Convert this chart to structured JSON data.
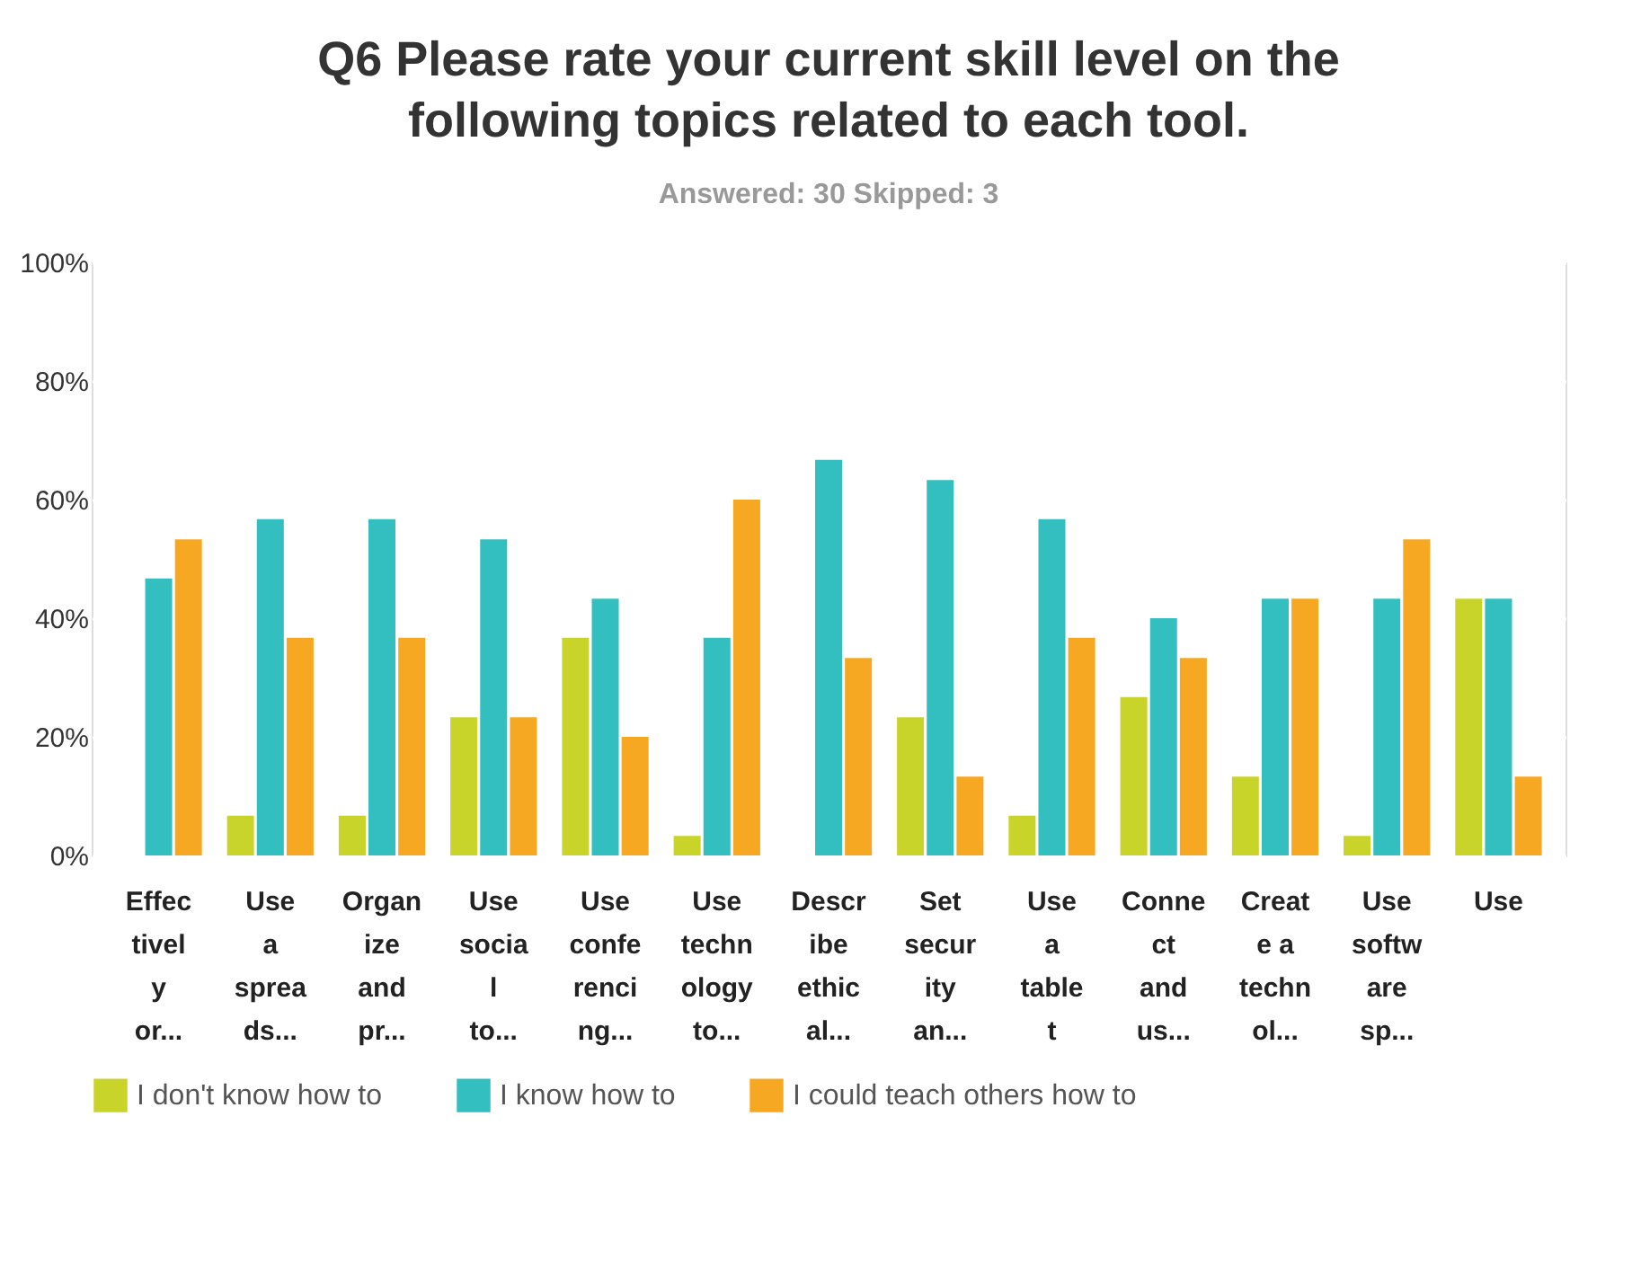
{
  "chart_data": {
    "type": "bar",
    "title": "Q6 Please rate your current skill level on the following topics related to each tool.",
    "subtitle": "Answered: 30    Skipped: 3",
    "categories": [
      "Effec\ntivel\ny\nor...",
      "Use\na\nsprea\nds...",
      "Organ\nize\nand\npr...",
      "Use\nsocia\nl\nto...",
      "Use\nconfe\nrenci\nng...",
      "Use\ntechn\nology\nto...",
      "Descr\nibe\nethic\nal...",
      "Set\nsecur\nity\nan...",
      "Use\na\ntable\nt",
      "Conne\nct\nand\nus...",
      "Creat\ne a\ntechn\nol...",
      "Use\nsoftw\nare\nsp...",
      "Use"
    ],
    "series": [
      {
        "name": "I don't know how to",
        "color": "#c8d42a",
        "values": [
          0,
          6.7,
          6.7,
          23.3,
          36.7,
          3.3,
          0,
          23.3,
          6.7,
          26.7,
          13.3,
          3.3,
          43.3
        ]
      },
      {
        "name": "I know how to",
        "color": "#33bfbf",
        "values": [
          46.7,
          56.7,
          56.7,
          53.3,
          43.3,
          36.7,
          66.7,
          63.3,
          56.7,
          40,
          43.3,
          43.3,
          43.3
        ]
      },
      {
        "name": "I could teach others how to",
        "color": "#f7a823",
        "values": [
          53.3,
          36.7,
          36.7,
          23.3,
          20,
          60,
          33.3,
          13.3,
          36.7,
          33.3,
          43.3,
          53.3,
          13.3
        ]
      }
    ],
    "ylim": [
      0,
      100
    ],
    "yticks": [
      {
        "value": 0,
        "label": "0%"
      },
      {
        "value": 20,
        "label": "20%"
      },
      {
        "value": 40,
        "label": "40%"
      },
      {
        "value": 60,
        "label": "60%"
      },
      {
        "value": 80,
        "label": "80%"
      },
      {
        "value": 100,
        "label": "100%"
      }
    ],
    "grid": "y",
    "legend": "bottom"
  }
}
